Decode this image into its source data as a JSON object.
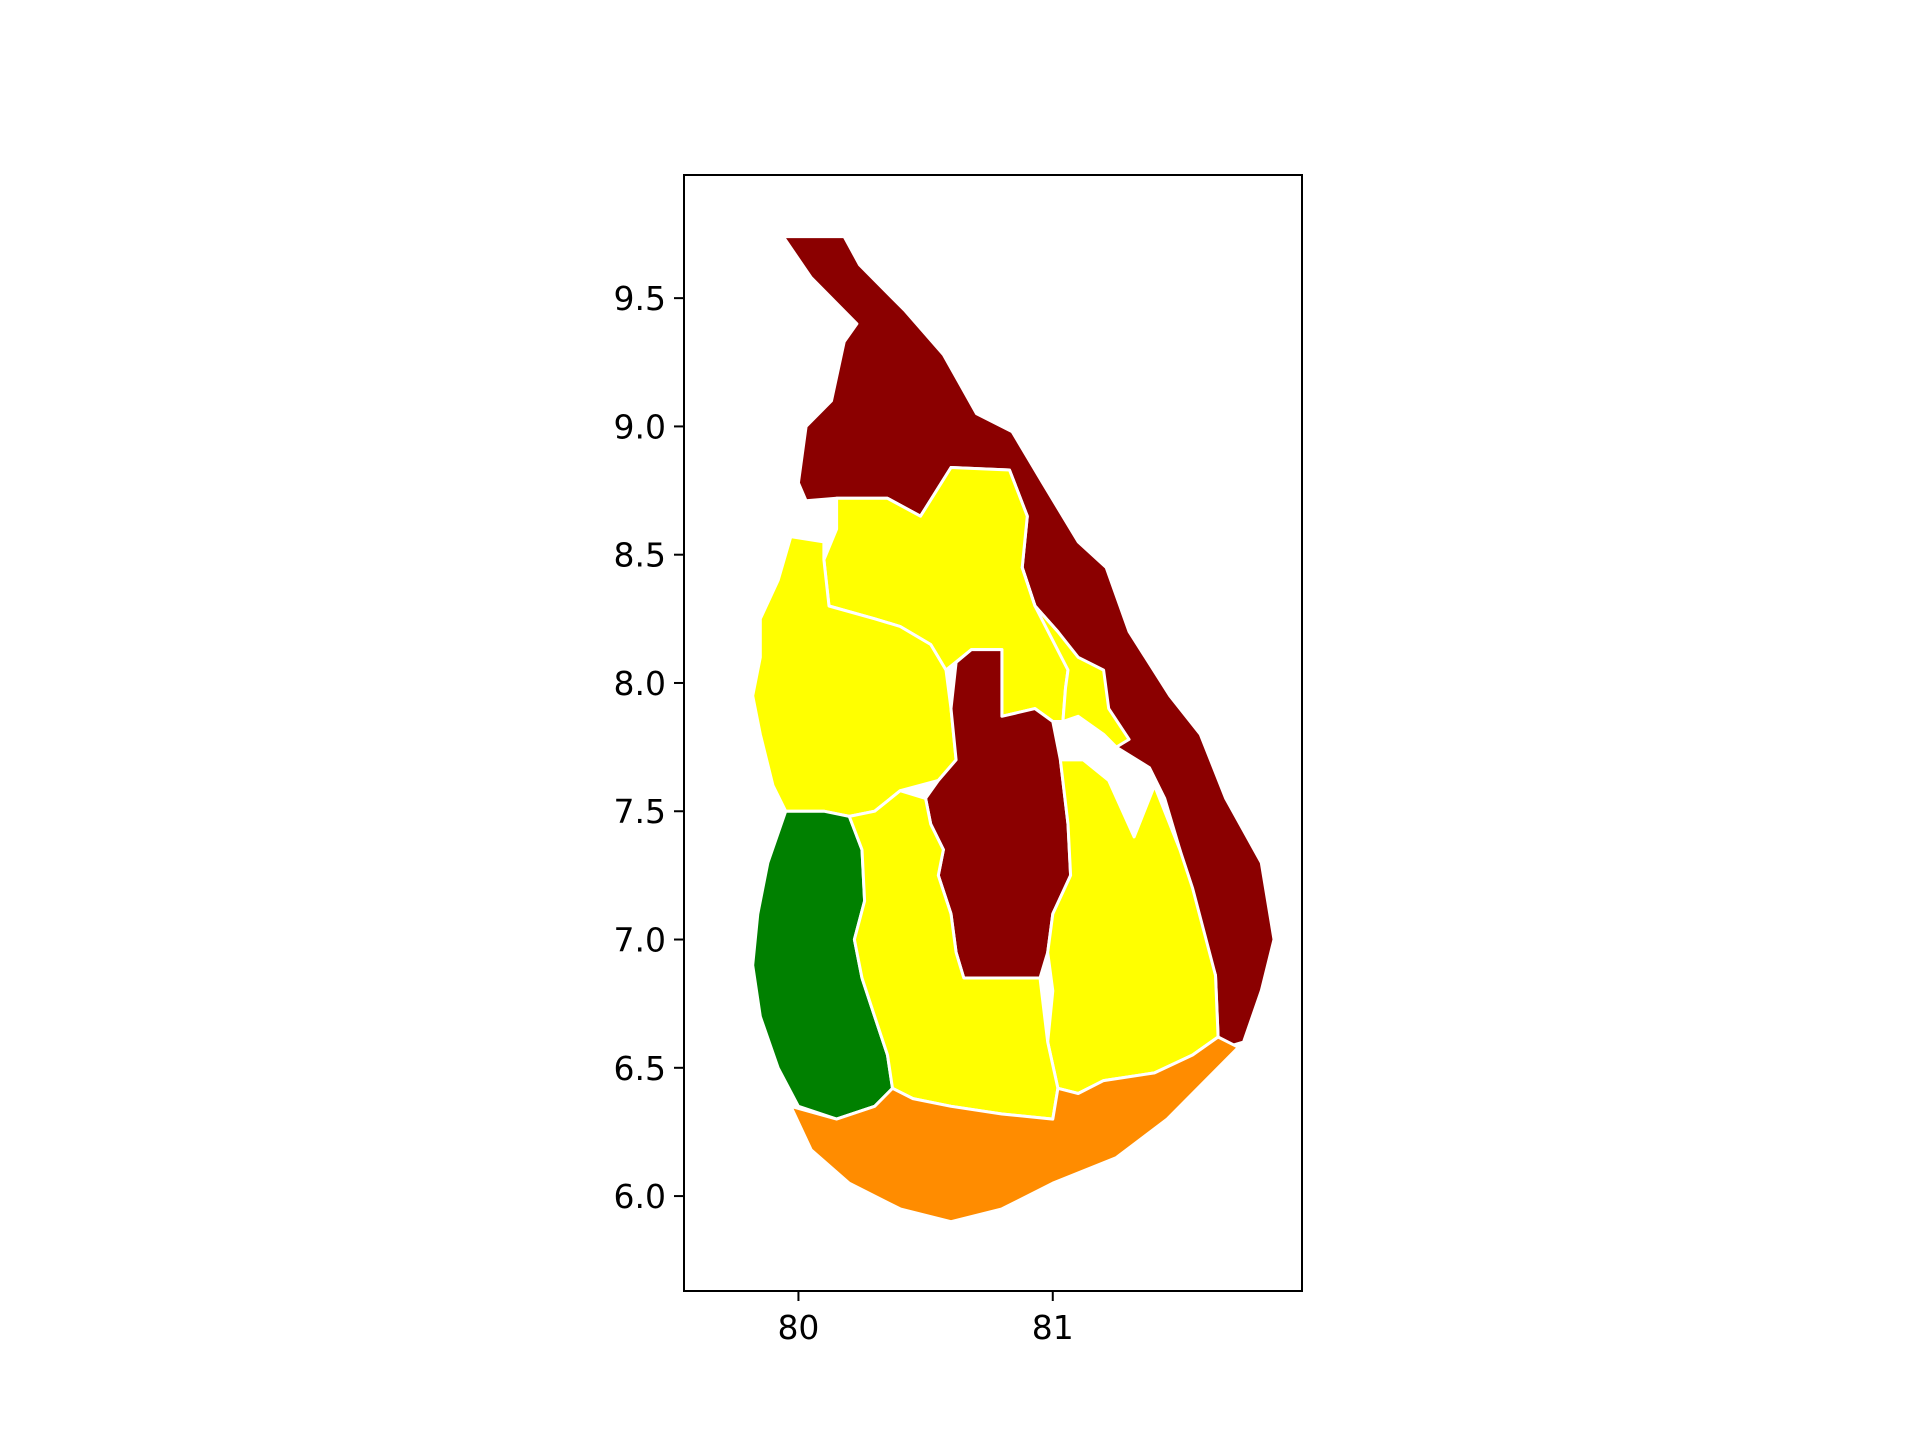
{
  "chart_data": {
    "type": "map",
    "title": "",
    "xlabel": "",
    "ylabel": "",
    "xlim": [
      79.55,
      81.98
    ],
    "ylim": [
      5.63,
      9.98
    ],
    "xticks": [
      {
        "value": 80,
        "label": "80"
      },
      {
        "value": 81,
        "label": "81"
      }
    ],
    "yticks": [
      {
        "value": 6.0,
        "label": "6.0"
      },
      {
        "value": 6.5,
        "label": "6.5"
      },
      {
        "value": 7.0,
        "label": "7.0"
      },
      {
        "value": 7.5,
        "label": "7.5"
      },
      {
        "value": 8.0,
        "label": "8.0"
      },
      {
        "value": 8.5,
        "label": "8.5"
      },
      {
        "value": 9.0,
        "label": "9.0"
      },
      {
        "value": 9.5,
        "label": "9.5"
      }
    ],
    "grid": false,
    "legend": "none",
    "colors": {
      "dark_red": "#8b0000",
      "yellow": "#ffff00",
      "green": "#008000",
      "orange": "#ff8c00",
      "boundary": "#ffffff"
    },
    "regions": [
      {
        "id": "northern",
        "color": "#8b0000",
        "lonlat": [
          [
            79.94,
            9.74
          ],
          [
            80.18,
            9.74
          ],
          [
            80.24,
            9.63
          ],
          [
            80.42,
            9.45
          ],
          [
            80.57,
            9.28
          ],
          [
            80.7,
            9.05
          ],
          [
            80.84,
            8.98
          ],
          [
            80.96,
            8.78
          ],
          [
            81.1,
            8.55
          ],
          [
            81.21,
            8.45
          ],
          [
            81.3,
            8.2
          ],
          [
            81.46,
            7.95
          ],
          [
            81.58,
            7.8
          ],
          [
            81.68,
            7.55
          ],
          [
            81.82,
            7.3
          ],
          [
            81.87,
            7.0
          ],
          [
            81.82,
            6.8
          ],
          [
            81.75,
            6.6
          ],
          [
            81.68,
            6.58
          ],
          [
            81.65,
            6.62
          ],
          [
            81.64,
            6.86
          ],
          [
            81.56,
            7.1
          ],
          [
            81.5,
            7.35
          ],
          [
            81.44,
            7.55
          ],
          [
            81.38,
            7.67
          ],
          [
            81.25,
            7.75
          ],
          [
            81.16,
            7.9
          ],
          [
            81.06,
            8.05
          ],
          [
            81.02,
            8.2
          ],
          [
            80.93,
            8.3
          ],
          [
            80.88,
            8.45
          ],
          [
            80.9,
            8.65
          ],
          [
            80.83,
            8.83
          ],
          [
            80.6,
            8.84
          ],
          [
            80.48,
            8.65
          ],
          [
            80.35,
            8.72
          ],
          [
            80.15,
            8.72
          ],
          [
            80.03,
            8.71
          ],
          [
            80.0,
            8.78
          ],
          [
            80.03,
            9.0
          ],
          [
            80.13,
            9.1
          ],
          [
            80.18,
            9.33
          ],
          [
            80.23,
            9.4
          ],
          [
            80.05,
            9.58
          ],
          [
            79.94,
            9.74
          ]
        ]
      },
      {
        "id": "north-central",
        "color": "#ffff00",
        "lonlat": [
          [
            80.15,
            8.72
          ],
          [
            80.35,
            8.72
          ],
          [
            80.48,
            8.65
          ],
          [
            80.6,
            8.84
          ],
          [
            80.83,
            8.83
          ],
          [
            80.9,
            8.65
          ],
          [
            80.88,
            8.45
          ],
          [
            80.93,
            8.3
          ],
          [
            81.02,
            8.2
          ],
          [
            81.06,
            8.05
          ],
          [
            81.05,
            7.98
          ],
          [
            81.04,
            7.85
          ],
          [
            81.0,
            7.85
          ],
          [
            80.93,
            7.9
          ],
          [
            80.8,
            7.87
          ],
          [
            80.8,
            8.13
          ],
          [
            80.68,
            8.13
          ],
          [
            80.58,
            8.05
          ],
          [
            80.52,
            8.15
          ],
          [
            80.4,
            8.22
          ],
          [
            80.3,
            8.25
          ],
          [
            80.12,
            8.3
          ],
          [
            80.1,
            8.48
          ],
          [
            80.15,
            8.6
          ],
          [
            80.15,
            8.72
          ]
        ]
      },
      {
        "id": "eastern-yellow-strip",
        "color": "#ffff00",
        "lonlat": [
          [
            80.88,
            8.45
          ],
          [
            80.93,
            8.3
          ],
          [
            81.02,
            8.2
          ],
          [
            81.1,
            8.1
          ],
          [
            81.2,
            8.05
          ],
          [
            81.22,
            7.9
          ],
          [
            81.3,
            7.78
          ],
          [
            81.25,
            7.75
          ],
          [
            81.2,
            7.8
          ],
          [
            81.1,
            7.87
          ],
          [
            81.04,
            7.85
          ],
          [
            81.05,
            7.98
          ],
          [
            81.06,
            8.05
          ],
          [
            80.93,
            8.3
          ],
          [
            80.88,
            8.45
          ]
        ]
      },
      {
        "id": "north-western",
        "color": "#ffff00",
        "lonlat": [
          [
            79.97,
            8.57
          ],
          [
            80.1,
            8.55
          ],
          [
            80.1,
            8.48
          ],
          [
            80.12,
            8.3
          ],
          [
            80.3,
            8.25
          ],
          [
            80.4,
            8.22
          ],
          [
            80.52,
            8.15
          ],
          [
            80.58,
            8.05
          ],
          [
            80.6,
            7.9
          ],
          [
            80.62,
            7.7
          ],
          [
            80.55,
            7.62
          ],
          [
            80.4,
            7.58
          ],
          [
            80.3,
            7.5
          ],
          [
            80.2,
            7.48
          ],
          [
            80.1,
            7.5
          ],
          [
            79.95,
            7.5
          ],
          [
            79.9,
            7.6
          ],
          [
            79.85,
            7.8
          ],
          [
            79.82,
            7.95
          ],
          [
            79.85,
            8.1
          ],
          [
            79.85,
            8.25
          ],
          [
            79.92,
            8.4
          ],
          [
            79.97,
            8.57
          ]
        ]
      },
      {
        "id": "western",
        "color": "#008000",
        "lonlat": [
          [
            79.95,
            7.5
          ],
          [
            80.1,
            7.5
          ],
          [
            80.2,
            7.48
          ],
          [
            80.25,
            7.35
          ],
          [
            80.26,
            7.15
          ],
          [
            80.22,
            7.0
          ],
          [
            80.25,
            6.85
          ],
          [
            80.3,
            6.7
          ],
          [
            80.35,
            6.55
          ],
          [
            80.37,
            6.42
          ],
          [
            80.3,
            6.35
          ],
          [
            80.15,
            6.3
          ],
          [
            80.0,
            6.35
          ],
          [
            79.92,
            6.5
          ],
          [
            79.85,
            6.7
          ],
          [
            79.82,
            6.9
          ],
          [
            79.84,
            7.1
          ],
          [
            79.88,
            7.3
          ],
          [
            79.95,
            7.5
          ]
        ]
      },
      {
        "id": "central",
        "color": "#8b0000",
        "lonlat": [
          [
            80.62,
            8.08
          ],
          [
            80.68,
            8.13
          ],
          [
            80.8,
            8.13
          ],
          [
            80.8,
            7.87
          ],
          [
            80.93,
            7.9
          ],
          [
            81.0,
            7.85
          ],
          [
            81.03,
            7.7
          ],
          [
            81.06,
            7.45
          ],
          [
            81.07,
            7.25
          ],
          [
            81.0,
            7.1
          ],
          [
            80.98,
            6.95
          ],
          [
            80.95,
            6.85
          ],
          [
            80.8,
            6.85
          ],
          [
            80.65,
            6.85
          ],
          [
            80.62,
            6.95
          ],
          [
            80.6,
            7.1
          ],
          [
            80.55,
            7.25
          ],
          [
            80.57,
            7.35
          ],
          [
            80.52,
            7.45
          ],
          [
            80.5,
            7.55
          ],
          [
            80.55,
            7.62
          ],
          [
            80.62,
            7.7
          ],
          [
            80.6,
            7.9
          ],
          [
            80.62,
            8.08
          ]
        ]
      },
      {
        "id": "uva",
        "color": "#ffff00",
        "lonlat": [
          [
            81.03,
            7.7
          ],
          [
            81.12,
            7.7
          ],
          [
            81.22,
            7.62
          ],
          [
            81.32,
            7.4
          ],
          [
            81.4,
            7.6
          ],
          [
            81.5,
            7.35
          ],
          [
            81.55,
            7.2
          ],
          [
            81.64,
            6.86
          ],
          [
            81.65,
            6.62
          ],
          [
            81.55,
            6.55
          ],
          [
            81.4,
            6.48
          ],
          [
            81.2,
            6.45
          ],
          [
            81.1,
            6.4
          ],
          [
            81.02,
            6.42
          ],
          [
            80.98,
            6.6
          ],
          [
            81.0,
            6.8
          ],
          [
            80.98,
            6.95
          ],
          [
            81.0,
            7.1
          ],
          [
            81.07,
            7.25
          ],
          [
            81.06,
            7.45
          ],
          [
            81.03,
            7.7
          ]
        ]
      },
      {
        "id": "sabaragamuwa",
        "color": "#ffff00",
        "lonlat": [
          [
            80.2,
            7.48
          ],
          [
            80.3,
            7.5
          ],
          [
            80.4,
            7.58
          ],
          [
            80.5,
            7.55
          ],
          [
            80.52,
            7.45
          ],
          [
            80.57,
            7.35
          ],
          [
            80.55,
            7.25
          ],
          [
            80.6,
            7.1
          ],
          [
            80.62,
            6.95
          ],
          [
            80.65,
            6.85
          ],
          [
            80.8,
            6.85
          ],
          [
            80.95,
            6.85
          ],
          [
            80.98,
            6.6
          ],
          [
            81.02,
            6.42
          ],
          [
            81.0,
            6.3
          ],
          [
            80.8,
            6.32
          ],
          [
            80.6,
            6.35
          ],
          [
            80.45,
            6.38
          ],
          [
            80.37,
            6.42
          ],
          [
            80.35,
            6.55
          ],
          [
            80.3,
            6.7
          ],
          [
            80.25,
            6.85
          ],
          [
            80.22,
            7.0
          ],
          [
            80.26,
            7.15
          ],
          [
            80.25,
            7.35
          ],
          [
            80.2,
            7.48
          ]
        ]
      },
      {
        "id": "southern",
        "color": "#ff8c00",
        "lonlat": [
          [
            79.97,
            6.35
          ],
          [
            80.15,
            6.3
          ],
          [
            80.3,
            6.35
          ],
          [
            80.37,
            6.42
          ],
          [
            80.45,
            6.38
          ],
          [
            80.6,
            6.35
          ],
          [
            80.8,
            6.32
          ],
          [
            81.0,
            6.3
          ],
          [
            81.02,
            6.42
          ],
          [
            81.1,
            6.4
          ],
          [
            81.2,
            6.45
          ],
          [
            81.4,
            6.48
          ],
          [
            81.55,
            6.55
          ],
          [
            81.65,
            6.62
          ],
          [
            81.73,
            6.58
          ],
          [
            81.6,
            6.45
          ],
          [
            81.45,
            6.3
          ],
          [
            81.25,
            6.15
          ],
          [
            81.0,
            6.05
          ],
          [
            80.8,
            5.95
          ],
          [
            80.6,
            5.9
          ],
          [
            80.4,
            5.95
          ],
          [
            80.2,
            6.05
          ],
          [
            80.05,
            6.18
          ],
          [
            79.97,
            6.35
          ]
        ]
      }
    ]
  }
}
